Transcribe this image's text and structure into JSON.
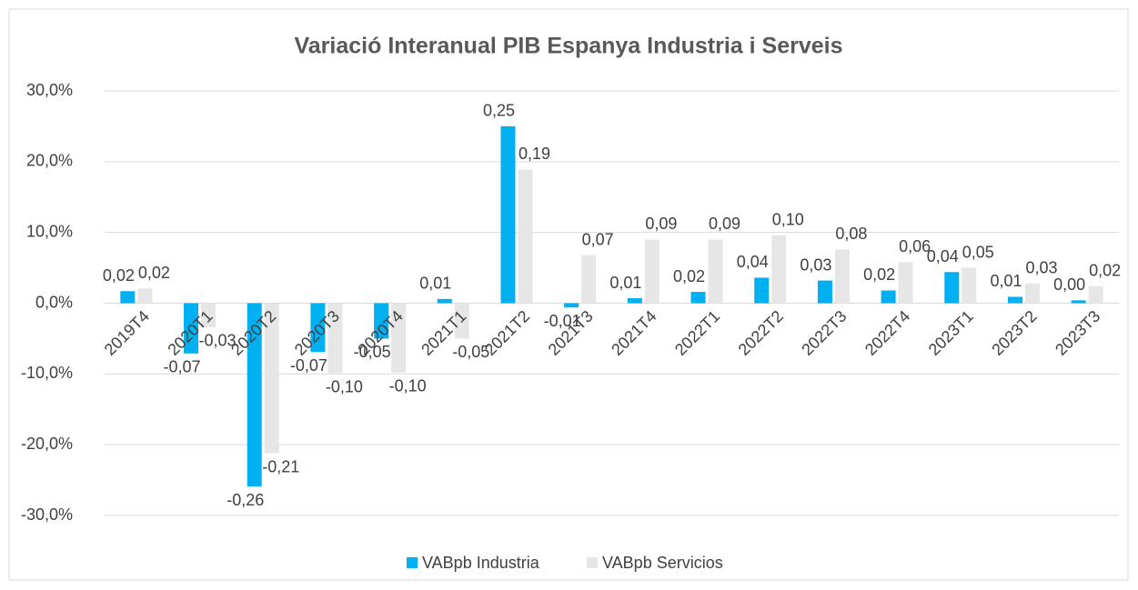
{
  "chart_data": {
    "type": "bar",
    "title": "Variació Interanual PIB Espanya Industria i Serveis",
    "categories": [
      "2019T4",
      "2020T1",
      "2020T2",
      "2020T3",
      "2020T4",
      "2021T1",
      "2021T2",
      "2021T3",
      "2021T4",
      "2022T1",
      "2022T2",
      "2022T3",
      "2022T4",
      "2023T1",
      "2023T2",
      "2023T3"
    ],
    "series": [
      {
        "name": "VABpb Industria",
        "color": "#00b0f0",
        "values": [
          1.7,
          -7.1,
          -25.9,
          -6.9,
          -5.0,
          0.6,
          25.0,
          -0.6,
          0.7,
          1.6,
          3.6,
          3.2,
          1.8,
          4.4,
          0.9,
          0.4
        ],
        "value_labels": [
          "0,02",
          "-0,07",
          "-0,26",
          "-0,07",
          "-0,05",
          "0,01",
          "0,25",
          "-0,01",
          "0,01",
          "0,02",
          "0,04",
          "0,03",
          "0,02",
          "0,04",
          "0,01",
          "0,00"
        ]
      },
      {
        "name": "VABpb Servicios",
        "color": "#e7e6e6",
        "values": [
          2.1,
          -3.4,
          -21.2,
          -9.9,
          -9.8,
          -5.0,
          18.9,
          6.8,
          9.0,
          9.0,
          9.6,
          7.6,
          5.8,
          5.0,
          2.8,
          2.4
        ],
        "value_labels": [
          "0,02",
          "-0,03",
          "-0,21",
          "-0,10",
          "-0,10",
          "-0,05",
          "0,19",
          "0,07",
          "0,09",
          "0,09",
          "0,10",
          "0,08",
          "0,06",
          "0,05",
          "0,03",
          "0,02"
        ]
      }
    ],
    "ylim": [
      -30,
      30
    ],
    "yticks": [
      {
        "value": -30,
        "label": "-30,0%"
      },
      {
        "value": -20,
        "label": "-20,0%"
      },
      {
        "value": -10,
        "label": "-10,0%"
      },
      {
        "value": 0,
        "label": "0,0%"
      },
      {
        "value": 10,
        "label": "10,0%"
      },
      {
        "value": 20,
        "label": "20,0%"
      },
      {
        "value": 30,
        "label": "30,0%"
      }
    ],
    "grid": true,
    "legend": "bottom"
  }
}
